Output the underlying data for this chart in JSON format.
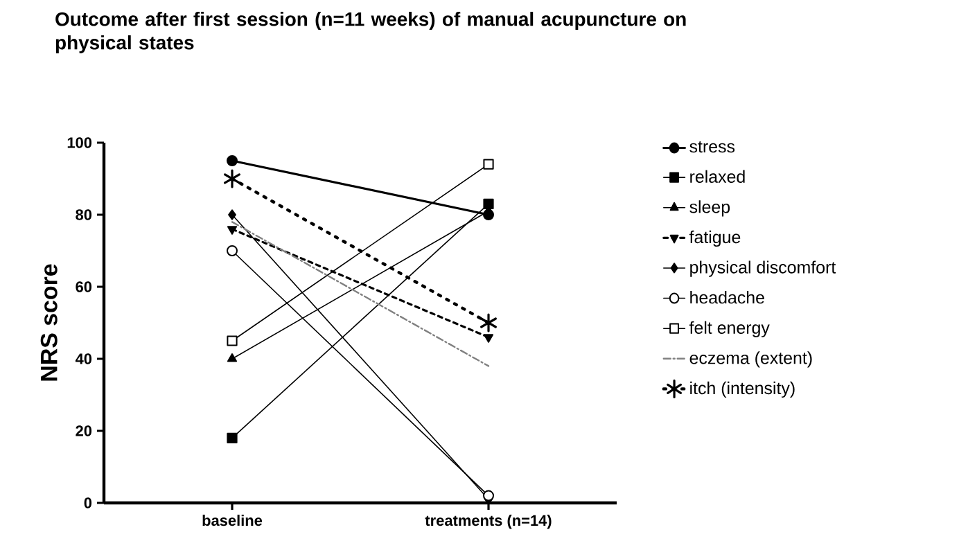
{
  "chart_data": {
    "type": "line",
    "title": "Outcome after first session (n=11 weeks) of manual acupuncture  on physical states",
    "ylabel": "NRS score",
    "categories": [
      "baseline",
      "treatments (n=14)"
    ],
    "ylim": [
      0,
      100
    ],
    "yticks": [
      0,
      20,
      40,
      60,
      80,
      100
    ],
    "legend": "right",
    "grid": false,
    "series": [
      {
        "name": "stress",
        "color": "#000000",
        "values": [
          95,
          80
        ],
        "marker": "circle",
        "line_style": "solid"
      },
      {
        "name": "relaxed",
        "color": "#000000",
        "values": [
          18,
          83
        ],
        "marker": "square",
        "line_style": "solid"
      },
      {
        "name": "sleep",
        "color": "#000000",
        "values": [
          40,
          81
        ],
        "marker": "triangle",
        "line_style": "solid"
      },
      {
        "name": "fatigue",
        "color": "#000000",
        "values": [
          76,
          46
        ],
        "marker": "triangle",
        "line_style": "dashed"
      },
      {
        "name": "physical discomfort",
        "color": "#000000",
        "values": [
          80,
          1
        ],
        "marker": "diamond",
        "line_style": "solid"
      },
      {
        "name": "headache",
        "color": "#000000",
        "values": [
          70,
          2
        ],
        "marker": "circle",
        "line_style": "solid"
      },
      {
        "name": "felt energy",
        "color": "#000000",
        "values": [
          45,
          94
        ],
        "marker": "square",
        "line_style": "solid"
      },
      {
        "name": "eczema (extent)",
        "color": "#808080",
        "values": [
          78,
          38
        ],
        "marker": "none",
        "line_style": "dashed"
      },
      {
        "name": "itch (intensity)",
        "color": "#000000",
        "values": [
          90,
          50
        ],
        "marker": "cross",
        "line_style": "dotted"
      }
    ]
  }
}
